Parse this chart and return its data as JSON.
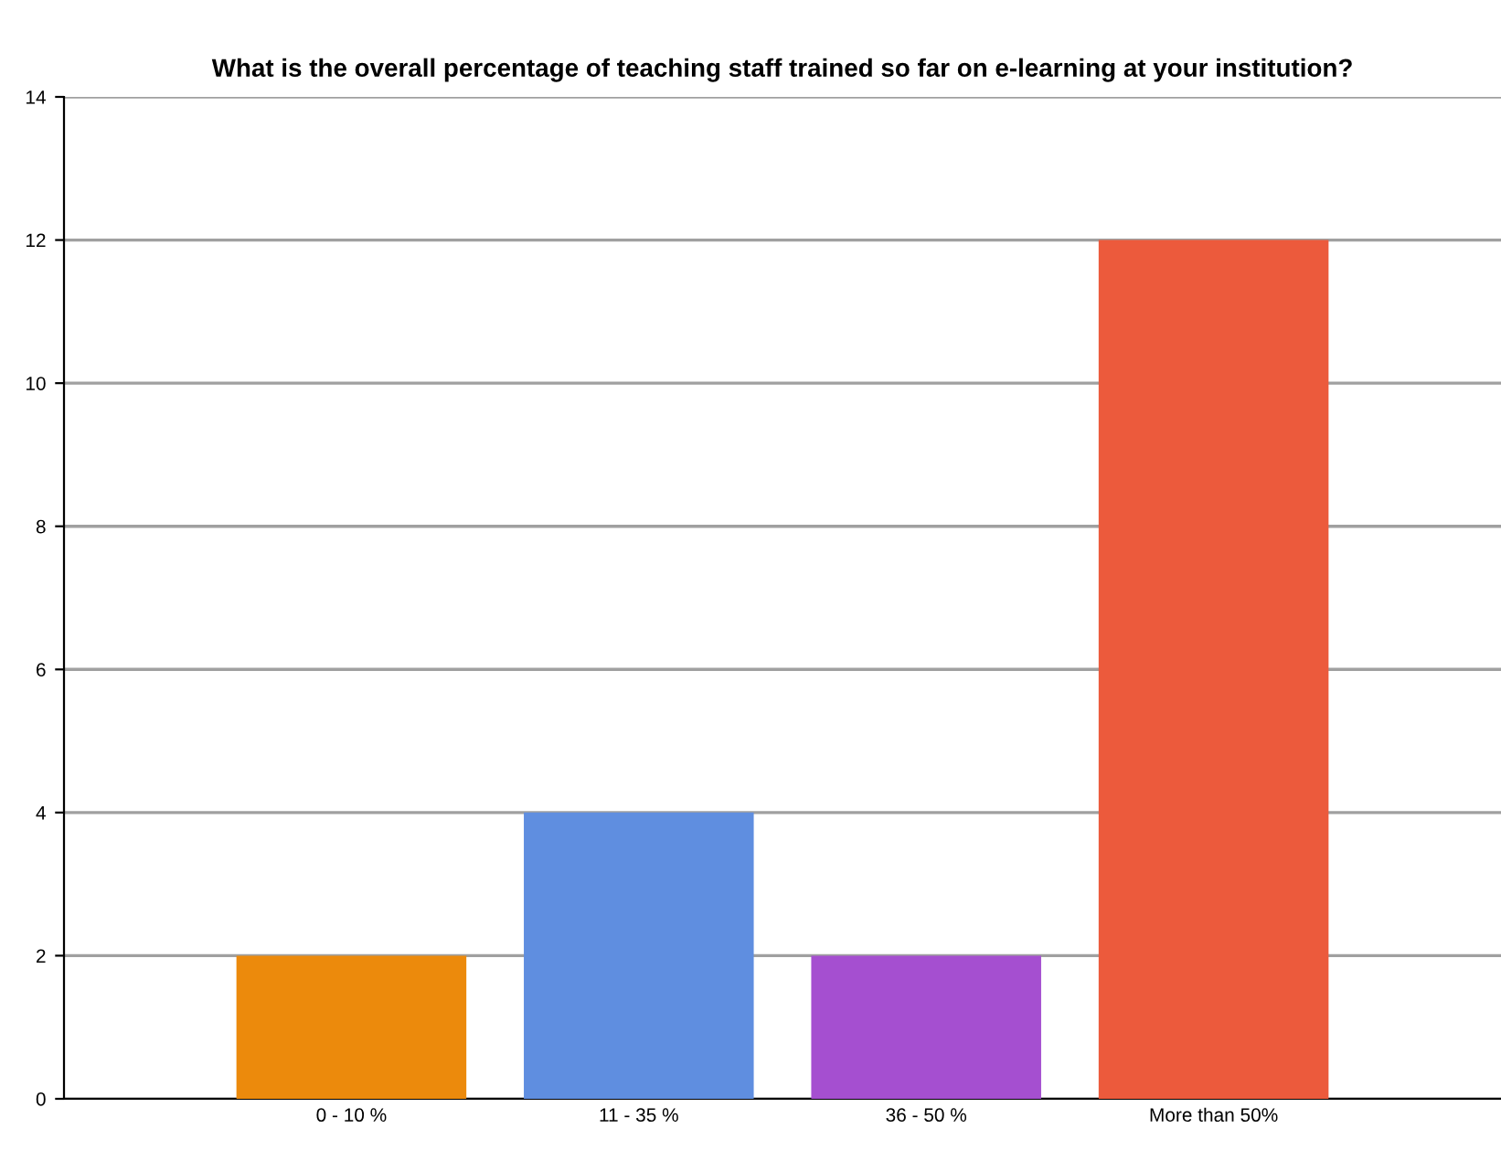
{
  "chart_data": {
    "type": "bar",
    "title": "What is the overall percentage of teaching staff trained so far on e-learning at your institution?",
    "categories": [
      "0 - 10 %",
      "11 - 35 %",
      "36 - 50 %",
      "More than 50%"
    ],
    "values": [
      2,
      4,
      2,
      12
    ],
    "colors": [
      "#ec8a0c",
      "#5f8ee0",
      "#a54fd0",
      "#ec5a3c"
    ],
    "ylim": [
      0,
      14
    ],
    "yticks": [
      0,
      2,
      4,
      6,
      8,
      10,
      12,
      14
    ],
    "grid": "y"
  }
}
